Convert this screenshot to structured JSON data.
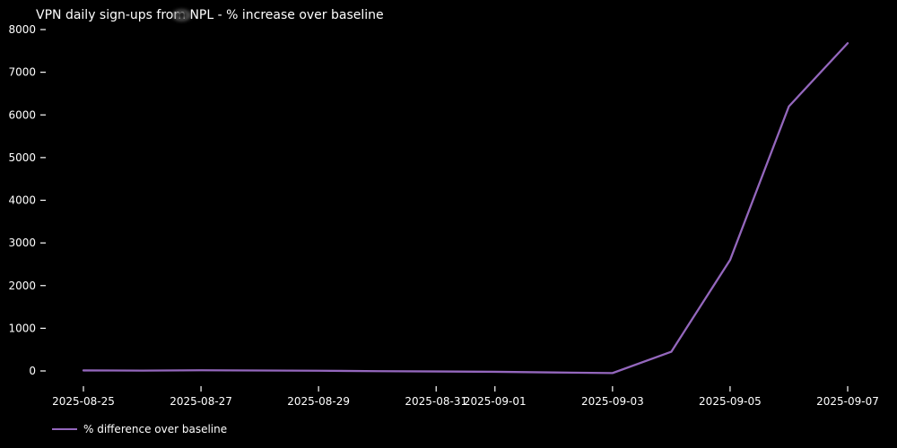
{
  "chart_data": {
    "type": "line",
    "title": "VPN daily sign-ups from NPL - % increase over baseline",
    "x": [
      "2025-08-25",
      "2025-08-26",
      "2025-08-27",
      "2025-08-28",
      "2025-08-29",
      "2025-08-30",
      "2025-08-31",
      "2025-09-01",
      "2025-09-02",
      "2025-09-03",
      "2025-09-04",
      "2025-09-05",
      "2025-09-06",
      "2025-09-07"
    ],
    "series": [
      {
        "name": "% difference over baseline",
        "color": "#9467bd",
        "values": [
          12,
          8,
          15,
          10,
          5,
          -5,
          -12,
          -20,
          -35,
          -50,
          450,
          2600,
          6200,
          7680
        ]
      }
    ],
    "xticks": [
      "2025-08-25",
      "2025-08-27",
      "2025-08-29",
      "2025-08-31",
      "2025-09-01",
      "2025-09-03",
      "2025-09-05",
      "2025-09-07"
    ],
    "yticks": [
      0,
      1000,
      2000,
      3000,
      4000,
      5000,
      6000,
      7000,
      8000
    ],
    "ylim": [
      0,
      8000
    ],
    "xlabel": "",
    "ylabel": "",
    "grid": false,
    "legend_position": "lower-left",
    "background_color": "#000000",
    "text_color": "#ffffff"
  }
}
